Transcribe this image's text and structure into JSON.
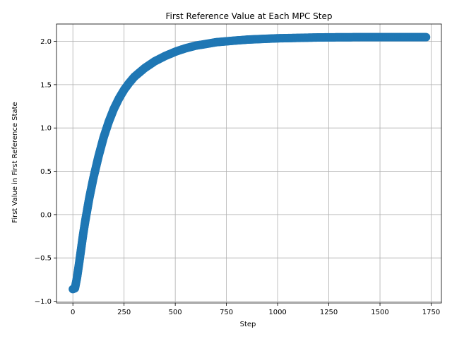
{
  "chart_data": {
    "type": "scatter",
    "title": "First Reference Value at Each MPC Step",
    "xlabel": "Step",
    "ylabel": "First Value in First Reference State",
    "xlim": [
      -80,
      1800
    ],
    "ylim": [
      -1.02,
      2.2
    ],
    "xticks": [
      0,
      250,
      500,
      750,
      1000,
      1250,
      1500,
      1750
    ],
    "xtick_labels": [
      "0",
      "250",
      "500",
      "750",
      "1000",
      "1250",
      "1500",
      "1750"
    ],
    "yticks": [
      -1.0,
      -0.5,
      0.0,
      0.5,
      1.0,
      1.5,
      2.0
    ],
    "ytick_labels": [
      "−1.0",
      "−0.5",
      "0.0",
      "0.5",
      "1.0",
      "1.5",
      "2.0"
    ],
    "grid": true,
    "marker_color": "#1f77b4",
    "series": [
      {
        "x": [
          0,
          10,
          20,
          30,
          40,
          50,
          60,
          80,
          100,
          125,
          150,
          175,
          200,
          225,
          250,
          275,
          300,
          350,
          400,
          450,
          500,
          550,
          600,
          650,
          700,
          750,
          800,
          850,
          900,
          950,
          1000,
          1100,
          1200,
          1300,
          1400,
          1500,
          1600,
          1700,
          1725
        ],
        "y": [
          -0.86,
          -0.85,
          -0.73,
          -0.57,
          -0.4,
          -0.23,
          -0.08,
          0.19,
          0.42,
          0.67,
          0.89,
          1.07,
          1.22,
          1.34,
          1.44,
          1.52,
          1.59,
          1.69,
          1.77,
          1.83,
          1.88,
          1.92,
          1.95,
          1.97,
          1.99,
          2.0,
          2.01,
          2.02,
          2.025,
          2.03,
          2.035,
          2.04,
          2.045,
          2.047,
          2.048,
          2.048,
          2.048,
          2.048,
          2.048
        ]
      }
    ]
  }
}
